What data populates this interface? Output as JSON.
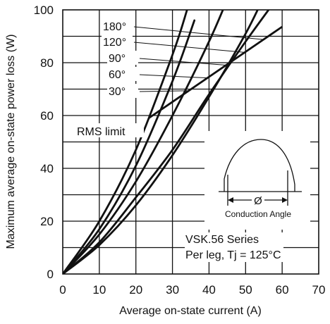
{
  "chart_data": {
    "type": "line",
    "xlabel": "Average on-state current (A)",
    "ylabel": "Maximum average on-state power loss (W)",
    "xlim": [
      0,
      70
    ],
    "ylim": [
      0,
      100
    ],
    "x_ticks": [
      "0",
      "10",
      "20",
      "30",
      "40",
      "50",
      "60",
      "70"
    ],
    "y_ticks": [
      "0",
      "20",
      "40",
      "60",
      "80",
      "100"
    ],
    "grid": true,
    "series": [
      {
        "name": "30°",
        "points": [
          [
            0,
            0
          ],
          [
            10,
            12
          ],
          [
            20,
            29
          ],
          [
            30,
            47
          ],
          [
            40,
            68
          ],
          [
            50,
            88
          ],
          [
            60,
            107
          ]
        ]
      },
      {
        "name": "60°",
        "points": [
          [
            0,
            0
          ],
          [
            10,
            11
          ],
          [
            20,
            26
          ],
          [
            30,
            45
          ],
          [
            40,
            67
          ],
          [
            50,
            91
          ],
          [
            55,
            105
          ]
        ]
      },
      {
        "name": "90°",
        "points": [
          [
            0,
            0
          ],
          [
            10,
            15
          ],
          [
            20,
            35
          ],
          [
            30,
            60
          ],
          [
            40,
            88
          ],
          [
            45,
            104
          ]
        ]
      },
      {
        "name": "120°",
        "points": [
          [
            0,
            0
          ],
          [
            10,
            17
          ],
          [
            20,
            41
          ],
          [
            30,
            73
          ],
          [
            36,
            96
          ]
        ]
      },
      {
        "name": "180°",
        "points": [
          [
            0,
            0
          ],
          [
            10,
            20
          ],
          [
            20,
            47
          ],
          [
            30,
            83
          ],
          [
            34,
            100
          ]
        ]
      }
    ],
    "rms_limit": {
      "label": "RMS limit",
      "points": [
        [
          23.5,
          59
        ],
        [
          60,
          93.6
        ]
      ]
    },
    "annotations": {
      "series_name": "VSK.56 Series",
      "condition": "Per leg,  Tj = 125°C",
      "inset_phi": "Ø",
      "inset_caption": "Conduction  Angle"
    }
  }
}
